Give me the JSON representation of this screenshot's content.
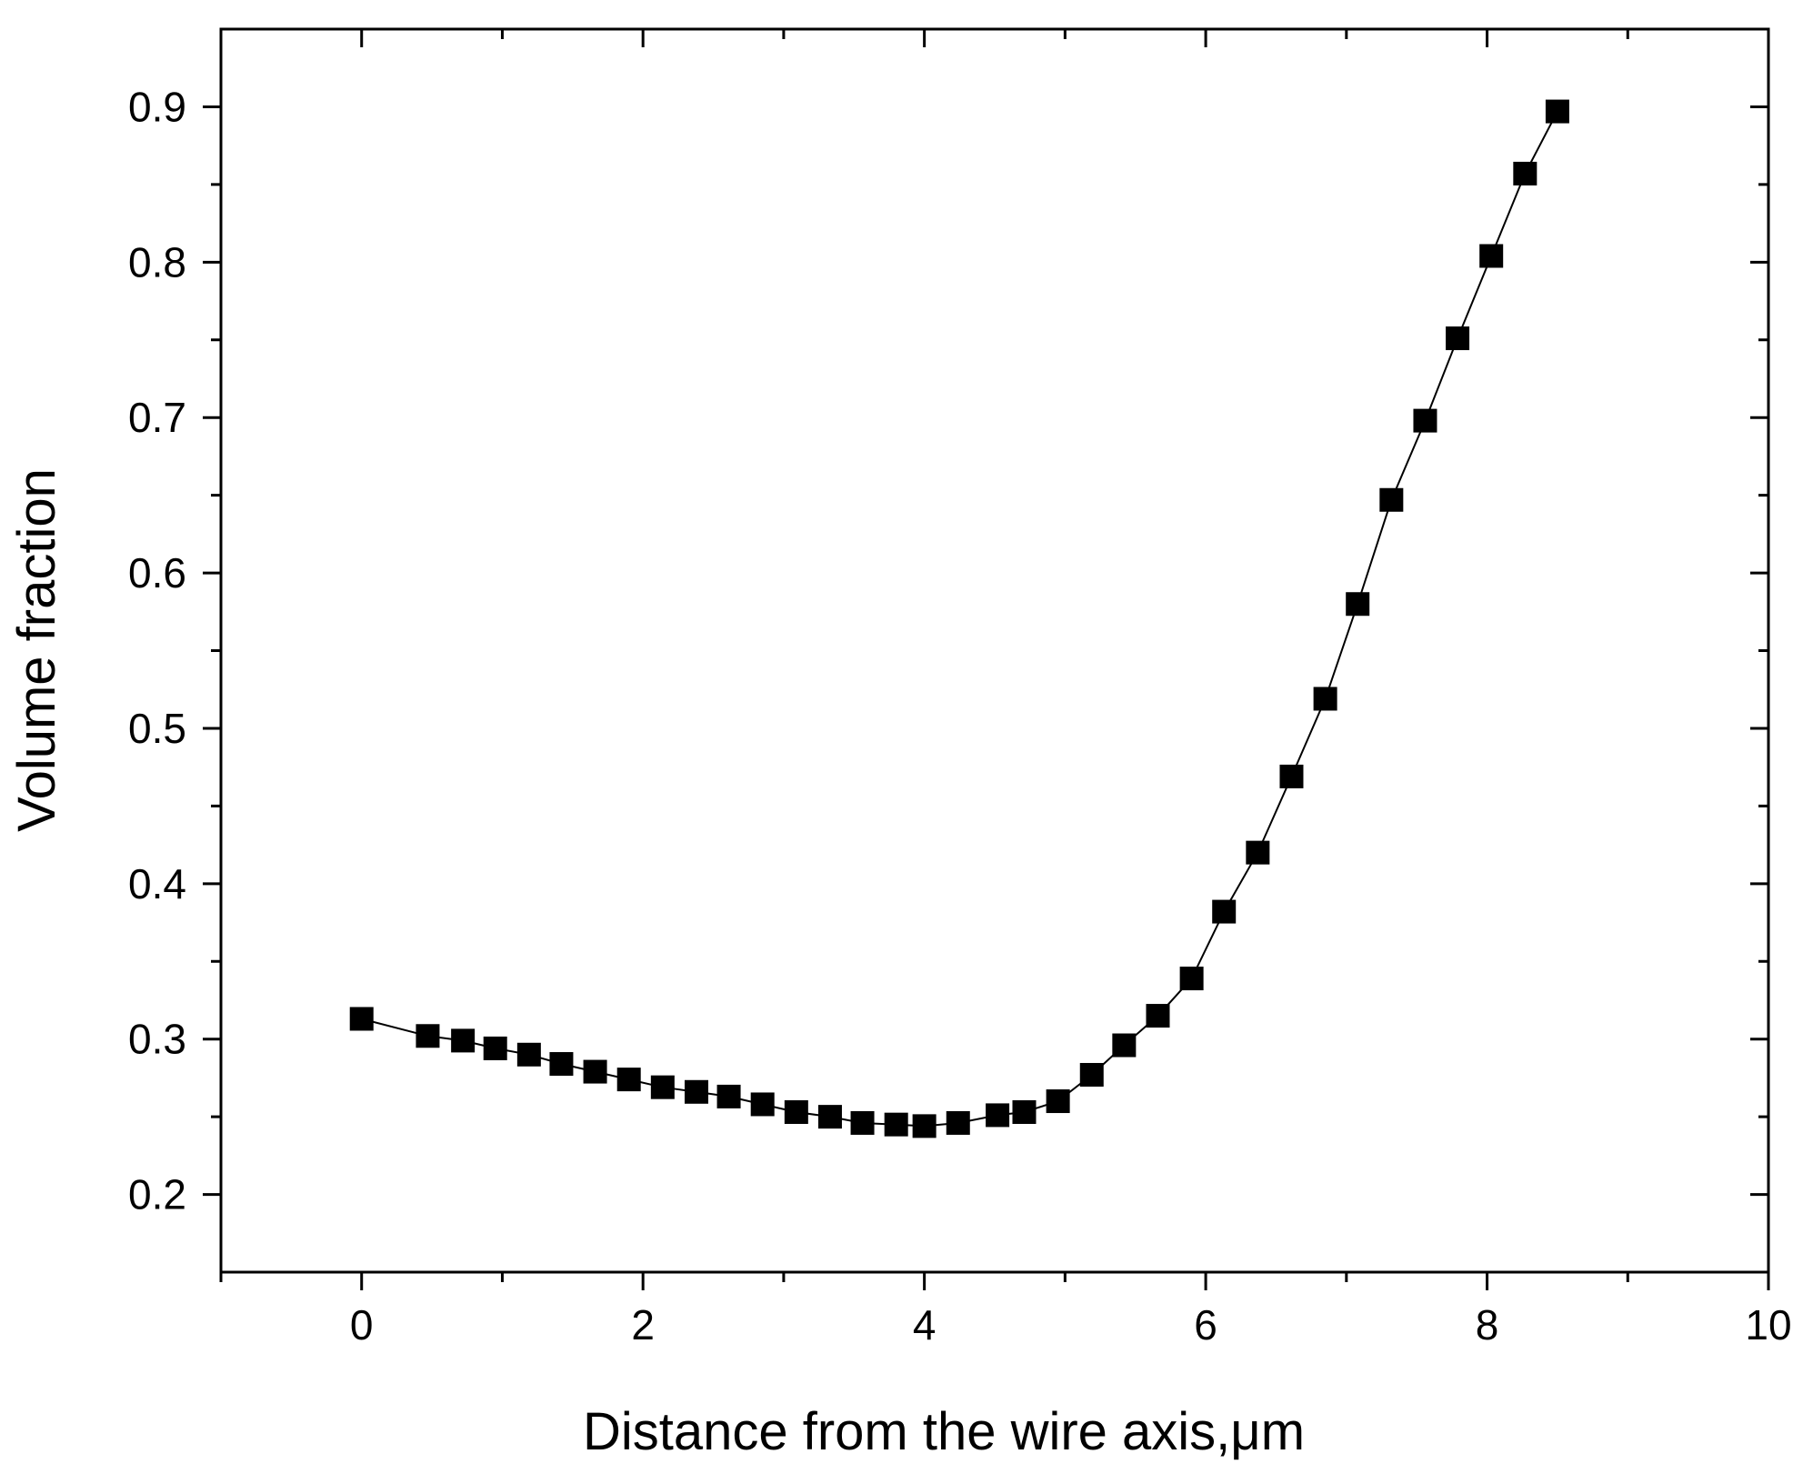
{
  "chart_data": {
    "type": "scatter",
    "title": "",
    "xlabel": "Distance from the wire axis,μm",
    "ylabel": "Volume fraction",
    "xlim": [
      -1,
      10
    ],
    "ylim": [
      0.15,
      0.95
    ],
    "x_ticks": [
      0,
      2,
      4,
      6,
      8,
      10
    ],
    "x_tick_labels": [
      "0",
      "2",
      "4",
      "6",
      "8",
      "10"
    ],
    "y_ticks": [
      0.2,
      0.3,
      0.4,
      0.5,
      0.6,
      0.7,
      0.8,
      0.9
    ],
    "y_tick_labels": [
      "0.2",
      "0.3",
      "0.4",
      "0.5",
      "0.6",
      "0.7",
      "0.8",
      "0.9"
    ],
    "x_minor_step": 1,
    "y_minor_step": 0.05,
    "grid": false,
    "legend": "none",
    "marker": "square",
    "connected": true,
    "marker_color": "#000000",
    "line_color": "#000000",
    "series": [
      {
        "x": [
          0.0,
          0.47,
          0.72,
          0.95,
          1.19,
          1.42,
          1.66,
          1.9,
          2.14,
          2.38,
          2.61,
          2.85,
          3.09,
          3.33,
          3.56,
          3.8,
          4.0,
          4.24,
          4.52,
          4.71,
          4.95,
          5.19,
          5.42,
          5.66,
          5.9,
          6.13,
          6.37,
          6.61,
          6.85,
          7.08,
          7.32,
          7.56,
          7.79,
          8.03,
          8.27,
          8.5
        ],
        "y": [
          0.313,
          0.302,
          0.299,
          0.294,
          0.29,
          0.284,
          0.279,
          0.274,
          0.269,
          0.266,
          0.263,
          0.258,
          0.253,
          0.25,
          0.246,
          0.245,
          0.244,
          0.246,
          0.251,
          0.253,
          0.26,
          0.277,
          0.296,
          0.315,
          0.339,
          0.382,
          0.42,
          0.469,
          0.519,
          0.58,
          0.647,
          0.698,
          0.751,
          0.804,
          0.857,
          0.897
        ]
      }
    ]
  }
}
